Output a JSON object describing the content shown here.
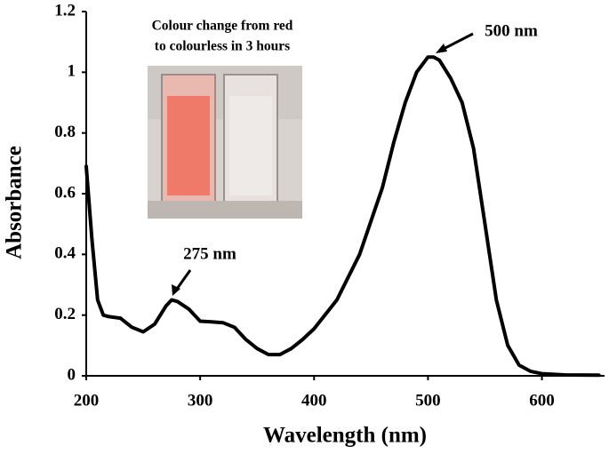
{
  "chart_data": {
    "type": "line",
    "x_label": "Wavelength (nm)",
    "y_label": "Absorbance",
    "x": [
      200,
      205,
      210,
      215,
      220,
      230,
      240,
      250,
      260,
      270,
      275,
      280,
      290,
      300,
      310,
      320,
      330,
      340,
      350,
      360,
      370,
      380,
      390,
      400,
      420,
      440,
      460,
      470,
      480,
      490,
      500,
      505,
      510,
      520,
      530,
      540,
      550,
      560,
      570,
      580,
      590,
      600,
      620,
      650
    ],
    "values": [
      0.69,
      0.45,
      0.25,
      0.2,
      0.195,
      0.19,
      0.16,
      0.145,
      0.17,
      0.23,
      0.25,
      0.245,
      0.22,
      0.18,
      0.178,
      0.175,
      0.16,
      0.12,
      0.09,
      0.07,
      0.07,
      0.09,
      0.12,
      0.155,
      0.25,
      0.4,
      0.62,
      0.77,
      0.9,
      1.0,
      1.05,
      1.05,
      1.04,
      0.98,
      0.9,
      0.75,
      0.5,
      0.25,
      0.1,
      0.035,
      0.015,
      0.007,
      0.003,
      0.002
    ],
    "color": "#000000",
    "xlim": [
      200,
      655
    ],
    "xticks": [
      200,
      300,
      400,
      500,
      600
    ],
    "ylim": [
      0,
      1.2
    ],
    "yticks": [
      0,
      0.2,
      0.4,
      0.6,
      0.8,
      1,
      1.2
    ],
    "annotations": [
      "275 nm",
      "500 nm"
    ],
    "inset_caption": [
      "Colour change from red",
      "to colourless in 3 hours"
    ]
  }
}
